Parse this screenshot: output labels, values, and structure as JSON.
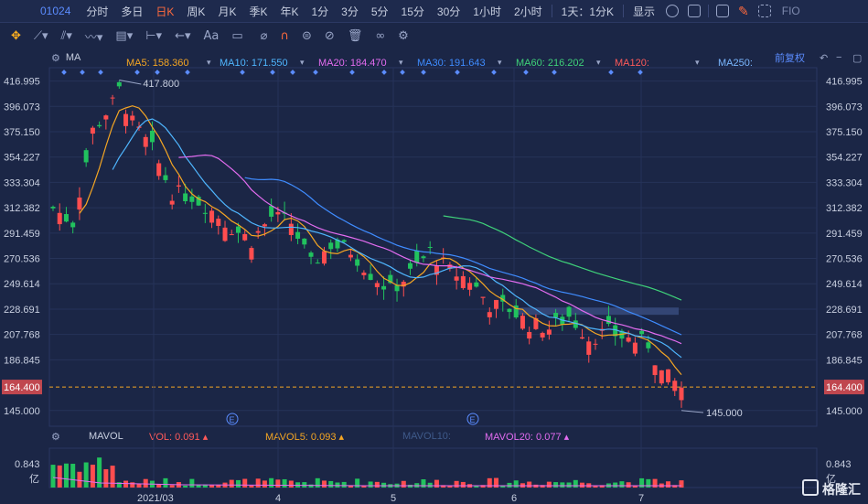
{
  "toolbar": {
    "code": "01024",
    "periods": [
      "分时",
      "多日",
      "日K",
      "周K",
      "月K",
      "季K",
      "年K",
      "1分",
      "3分",
      "5分",
      "15分",
      "30分",
      "1小时",
      "2小时"
    ],
    "active_index": 2,
    "interval_select": "1天：1分K",
    "display_label": "显示",
    "fio": "FIO"
  },
  "drawing_tools": {
    "text_tool": "Aa"
  },
  "ma_legend": {
    "label": "MA",
    "items": [
      {
        "text": "MA5: 158.360",
        "color": "#f5a623"
      },
      {
        "text": "MA10: 171.550",
        "color": "#4fb6ff"
      },
      {
        "text": "MA20: 184.470",
        "color": "#e36cf0"
      },
      {
        "text": "MA30: 191.643",
        "color": "#3f8cff"
      },
      {
        "text": "MA60: 216.202",
        "color": "#3fd27a"
      },
      {
        "text": "MA120:",
        "color": "#ff5a5a"
      },
      {
        "text": "MA250:",
        "color": "#7ab7ff"
      }
    ],
    "fq": "前复权"
  },
  "vol_legend": {
    "label": "MAVOL",
    "items": [
      {
        "text": "VOL: 0.091",
        "color": "#ff5a5a"
      },
      {
        "text": "MAVOL5: 0.093",
        "color": "#f5a623"
      },
      {
        "text": "MAVOL10:",
        "color": "#3f5a8a"
      },
      {
        "text": "MAVOL20: 0.077",
        "color": "#e36cf0"
      }
    ]
  },
  "price_axis": {
    "ticks": [
      "416.995",
      "396.073",
      "375.150",
      "354.227",
      "333.304",
      "312.382",
      "291.459",
      "270.536",
      "249.614",
      "228.691",
      "207.768",
      "186.845",
      "164.400",
      "145.000"
    ],
    "current_price": "164.400",
    "high_label": "417.800",
    "low_label": "145.000"
  },
  "vol_axis": {
    "tick": "0.843",
    "unit": "亿"
  },
  "x_axis": {
    "labels": [
      "2021/03",
      "4",
      "5",
      "6",
      "7"
    ]
  },
  "event_marker": "E",
  "watermark": "格隆汇",
  "colors": {
    "up": "#ff4d4f",
    "down": "#21c25e",
    "bg": "#1b2646",
    "grid": "#263359",
    "band": "#3a4d80"
  },
  "chart_data": {
    "type": "candlestick",
    "title": "01024",
    "ylim": [
      145,
      417.8
    ],
    "high": 417.8,
    "low": 145.0,
    "last": 164.4,
    "x_labels": [
      "2021/03",
      "4",
      "5",
      "6",
      "7"
    ],
    "series": [
      {
        "name": "MA5",
        "last": 158.36
      },
      {
        "name": "MA10",
        "last": 171.55
      },
      {
        "name": "MA20",
        "last": 184.47
      },
      {
        "name": "MA30",
        "last": 191.643
      },
      {
        "name": "MA60",
        "last": 216.202
      }
    ],
    "volume": {
      "last": 0.091,
      "mavol5": 0.093,
      "mavol20": 0.077,
      "unit": "亿",
      "max": 0.843
    }
  }
}
